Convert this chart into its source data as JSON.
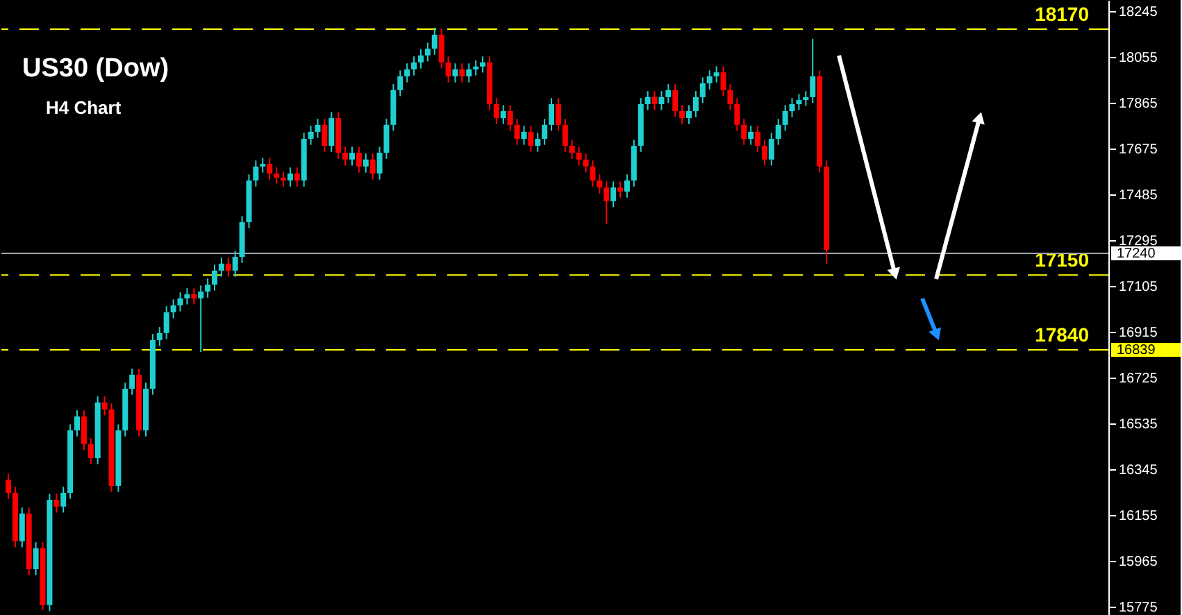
{
  "chart_data": {
    "type": "candlestick",
    "title": "US30 (Dow)",
    "subtitle": "H4 Chart",
    "categories": [
      null,
      null,
      null,
      null,
      null,
      null,
      null,
      null,
      null,
      null,
      null,
      null,
      null,
      null,
      null,
      null,
      null,
      null,
      null,
      null,
      null,
      null,
      null,
      null,
      null,
      null,
      null,
      null,
      null,
      null,
      null,
      null,
      null,
      null,
      null,
      null,
      null,
      null,
      null,
      null,
      null,
      null,
      null,
      null,
      null,
      null,
      null,
      null,
      null,
      null,
      null,
      null,
      null,
      null,
      null,
      null,
      null,
      null,
      null,
      null,
      null,
      null,
      null,
      null,
      null,
      null,
      null,
      null,
      null,
      null,
      null,
      null,
      null,
      null,
      null,
      null,
      null,
      null,
      null,
      null,
      null,
      null,
      null,
      null,
      null,
      null,
      null,
      null,
      null,
      null,
      null,
      null,
      null,
      null,
      null,
      null,
      null,
      null,
      null,
      null,
      null,
      null,
      null,
      null,
      null,
      null,
      null,
      null,
      null,
      null,
      null,
      null,
      null,
      null,
      null,
      null,
      null,
      null,
      null,
      null,
      null,
      null,
      null,
      null,
      null,
      null,
      null,
      null,
      null,
      null,
      null,
      null,
      null,
      null,
      null,
      null,
      null,
      null,
      null,
      null,
      null,
      null,
      null,
      null,
      null,
      null,
      null,
      null,
      null,
      null,
      null,
      null,
      null,
      null,
      null,
      null,
      null,
      null,
      null,
      null
    ],
    "ohlc": [
      [
        16300,
        16325,
        16221,
        16246
      ],
      [
        16246,
        16271,
        16020,
        16045
      ],
      [
        16045,
        16185,
        16020,
        16160
      ],
      [
        16160,
        16185,
        15904,
        15929
      ],
      [
        15929,
        16041,
        15904,
        16016
      ],
      [
        16016,
        16041,
        15760,
        15780
      ],
      [
        15780,
        16242,
        15755,
        16217
      ],
      [
        16217,
        16242,
        16164,
        16189
      ],
      [
        16189,
        16271,
        16164,
        16246
      ],
      [
        16246,
        16530,
        16221,
        16505
      ],
      [
        16505,
        16588,
        16480,
        16563
      ],
      [
        16563,
        16588,
        16423,
        16448
      ],
      [
        16448,
        16473,
        16365,
        16390
      ],
      [
        16390,
        16646,
        16365,
        16621
      ],
      [
        16621,
        16646,
        16567,
        16592
      ],
      [
        16592,
        16617,
        16250,
        16275
      ],
      [
        16275,
        16530,
        16250,
        16505
      ],
      [
        16505,
        16703,
        16480,
        16678
      ],
      [
        16678,
        16761,
        16653,
        16736
      ],
      [
        16736,
        16761,
        16480,
        16505
      ],
      [
        16505,
        16703,
        16480,
        16678
      ],
      [
        16678,
        16905,
        16653,
        16880
      ],
      [
        16880,
        16934,
        16855,
        16909
      ],
      [
        16909,
        17020,
        16884,
        16995
      ],
      [
        16995,
        17049,
        16970,
        17024
      ],
      [
        17024,
        17078,
        16999,
        17053
      ],
      [
        17053,
        17095,
        17028,
        17070
      ],
      [
        17070,
        17095,
        17028,
        17053
      ],
      [
        17053,
        17106,
        16830,
        17081
      ],
      [
        17081,
        17135,
        17056,
        17110
      ],
      [
        17110,
        17193,
        17085,
        17168
      ],
      [
        17168,
        17222,
        17143,
        17197
      ],
      [
        17197,
        17222,
        17143,
        17168
      ],
      [
        17168,
        17250,
        17143,
        17225
      ],
      [
        17225,
        17394,
        17200,
        17369
      ],
      [
        17369,
        17567,
        17344,
        17542
      ],
      [
        17542,
        17625,
        17517,
        17600
      ],
      [
        17600,
        17636,
        17575,
        17611
      ],
      [
        17611,
        17636,
        17546,
        17571
      ],
      [
        17571,
        17596,
        17529,
        17554
      ],
      [
        17554,
        17579,
        17517,
        17542
      ],
      [
        17542,
        17596,
        17517,
        17571
      ],
      [
        17571,
        17596,
        17517,
        17542
      ],
      [
        17542,
        17740,
        17517,
        17715
      ],
      [
        17715,
        17769,
        17690,
        17744
      ],
      [
        17744,
        17798,
        17719,
        17773
      ],
      [
        17773,
        17798,
        17661,
        17686
      ],
      [
        17686,
        17826,
        17661,
        17801
      ],
      [
        17801,
        17826,
        17632,
        17657
      ],
      [
        17657,
        17682,
        17604,
        17629
      ],
      [
        17629,
        17682,
        17604,
        17657
      ],
      [
        17657,
        17682,
        17575,
        17600
      ],
      [
        17600,
        17654,
        17575,
        17629
      ],
      [
        17629,
        17654,
        17546,
        17571
      ],
      [
        17571,
        17682,
        17546,
        17657
      ],
      [
        17657,
        17798,
        17632,
        17773
      ],
      [
        17773,
        17942,
        17748,
        17917
      ],
      [
        17917,
        17999,
        17892,
        17974
      ],
      [
        17974,
        18028,
        17949,
        18003
      ],
      [
        18003,
        18057,
        17978,
        18032
      ],
      [
        18032,
        18086,
        18007,
        18061
      ],
      [
        18061,
        18114,
        18036,
        18089
      ],
      [
        18089,
        18176,
        18064,
        18147
      ],
      [
        18147,
        18172,
        18007,
        18032
      ],
      [
        18032,
        18057,
        17949,
        17974
      ],
      [
        17974,
        18028,
        17949,
        18003
      ],
      [
        18003,
        18028,
        17949,
        17974
      ],
      [
        17974,
        18028,
        17949,
        18003
      ],
      [
        18003,
        18040,
        17978,
        18015
      ],
      [
        18015,
        18057,
        17990,
        18032
      ],
      [
        18032,
        18057,
        17834,
        17859
      ],
      [
        17859,
        17884,
        17776,
        17801
      ],
      [
        17801,
        17855,
        17776,
        17830
      ],
      [
        17830,
        17855,
        17748,
        17773
      ],
      [
        17773,
        17798,
        17690,
        17715
      ],
      [
        17715,
        17769,
        17690,
        17744
      ],
      [
        17744,
        17769,
        17661,
        17686
      ],
      [
        17686,
        17740,
        17661,
        17715
      ],
      [
        17715,
        17798,
        17690,
        17773
      ],
      [
        17773,
        17884,
        17748,
        17859
      ],
      [
        17859,
        17884,
        17748,
        17773
      ],
      [
        17773,
        17798,
        17661,
        17686
      ],
      [
        17686,
        17711,
        17632,
        17657
      ],
      [
        17657,
        17682,
        17604,
        17629
      ],
      [
        17629,
        17654,
        17575,
        17600
      ],
      [
        17600,
        17625,
        17517,
        17542
      ],
      [
        17542,
        17567,
        17488,
        17513
      ],
      [
        17513,
        17538,
        17360,
        17456
      ],
      [
        17456,
        17538,
        17431,
        17513
      ],
      [
        17513,
        17538,
        17471,
        17496
      ],
      [
        17496,
        17567,
        17471,
        17542
      ],
      [
        17542,
        17711,
        17517,
        17686
      ],
      [
        17686,
        17884,
        17661,
        17859
      ],
      [
        17859,
        17913,
        17834,
        17888
      ],
      [
        17888,
        17913,
        17834,
        17859
      ],
      [
        17859,
        17913,
        17834,
        17888
      ],
      [
        17888,
        17942,
        17863,
        17917
      ],
      [
        17917,
        17942,
        17805,
        17830
      ],
      [
        17830,
        17855,
        17776,
        17801
      ],
      [
        17801,
        17855,
        17776,
        17830
      ],
      [
        17830,
        17913,
        17805,
        17888
      ],
      [
        17888,
        17970,
        17863,
        17945
      ],
      [
        17945,
        17999,
        17920,
        17974
      ],
      [
        17974,
        18016,
        17949,
        17991
      ],
      [
        17991,
        18016,
        17892,
        17917
      ],
      [
        17917,
        17942,
        17834,
        17859
      ],
      [
        17859,
        17884,
        17748,
        17773
      ],
      [
        17773,
        17798,
        17690,
        17715
      ],
      [
        17715,
        17769,
        17690,
        17744
      ],
      [
        17744,
        17769,
        17661,
        17686
      ],
      [
        17686,
        17711,
        17604,
        17629
      ],
      [
        17629,
        17740,
        17604,
        17715
      ],
      [
        17715,
        17798,
        17690,
        17773
      ],
      [
        17773,
        17855,
        17748,
        17830
      ],
      [
        17830,
        17884,
        17805,
        17859
      ],
      [
        17859,
        17901,
        17834,
        17876
      ],
      [
        17876,
        17913,
        17851,
        17888
      ],
      [
        17888,
        18130,
        17863,
        17974
      ],
      [
        17974,
        17999,
        17575,
        17600
      ],
      [
        17600,
        17625,
        17197,
        17254
      ],
      null,
      null,
      null,
      null,
      null,
      null,
      null,
      null,
      null,
      null,
      null,
      null,
      null,
      null,
      null,
      null,
      null,
      null,
      null,
      null,
      null,
      null,
      null,
      null,
      null,
      null,
      null,
      null,
      null,
      null,
      null,
      null,
      null,
      null,
      null,
      null,
      null,
      null,
      null,
      null
    ],
    "colors": [
      "#ff0000",
      "#ff0000",
      "#20d0d0",
      "#ff0000",
      "#20d0d0",
      "#ff0000",
      "#20d0d0",
      "#ff0000",
      "#20d0d0",
      "#20d0d0",
      "#20d0d0",
      "#ff0000",
      "#ff0000",
      "#20d0d0",
      "#ff0000",
      "#ff0000",
      "#20d0d0",
      "#20d0d0",
      "#20d0d0",
      "#ff0000",
      "#20d0d0",
      "#20d0d0",
      "#20d0d0",
      "#20d0d0",
      "#20d0d0",
      "#20d0d0",
      "#20d0d0",
      "#ff0000",
      "#20d0d0",
      "#20d0d0",
      "#20d0d0",
      "#20d0d0",
      "#ff0000",
      "#20d0d0",
      "#20d0d0",
      "#20d0d0",
      "#20d0d0",
      "#20d0d0",
      "#ff0000",
      "#ff0000",
      "#ff0000",
      "#20d0d0",
      "#ff0000",
      "#20d0d0",
      "#20d0d0",
      "#20d0d0",
      "#ff0000",
      "#20d0d0",
      "#ff0000",
      "#ff0000",
      "#20d0d0",
      "#ff0000",
      "#20d0d0",
      "#ff0000",
      "#20d0d0",
      "#20d0d0",
      "#20d0d0",
      "#20d0d0",
      "#20d0d0",
      "#20d0d0",
      "#20d0d0",
      "#20d0d0",
      "#20d0d0",
      "#ff0000",
      "#ff0000",
      "#20d0d0",
      "#ff0000",
      "#20d0d0",
      "#20d0d0",
      "#20d0d0",
      "#ff0000",
      "#ff0000",
      "#20d0d0",
      "#ff0000",
      "#ff0000",
      "#20d0d0",
      "#ff0000",
      "#20d0d0",
      "#20d0d0",
      "#20d0d0",
      "#ff0000",
      "#ff0000",
      "#ff0000",
      "#ff0000",
      "#ff0000",
      "#ff0000",
      "#ff0000",
      "#ff0000",
      "#20d0d0",
      "#ff0000",
      "#20d0d0",
      "#20d0d0",
      "#20d0d0",
      "#20d0d0",
      "#ff0000",
      "#20d0d0",
      "#20d0d0",
      "#ff0000",
      "#ff0000",
      "#20d0d0",
      "#20d0d0",
      "#20d0d0",
      "#20d0d0",
      "#20d0d0",
      "#ff0000",
      "#ff0000",
      "#ff0000",
      "#ff0000",
      "#20d0d0",
      "#ff0000",
      "#ff0000",
      "#20d0d0",
      "#20d0d0",
      "#20d0d0",
      "#20d0d0",
      "#20d0d0",
      "#20d0d0",
      "#20d0d0",
      "#ff0000",
      "#ff0000",
      null,
      null,
      null,
      null,
      null,
      null,
      null,
      null,
      null,
      null,
      null,
      null,
      null,
      null,
      null,
      null,
      null,
      null,
      null,
      null,
      null,
      null,
      null,
      null,
      null,
      null,
      null,
      null,
      null,
      null,
      null,
      null,
      null,
      null,
      null,
      null,
      null,
      null,
      null,
      null
    ],
    "ylim": [
      15739,
      18291
    ],
    "yticks": [
      15775,
      15965,
      16155,
      16345,
      16535,
      16725,
      16915,
      17105,
      17295,
      17485,
      17675,
      17865,
      18055,
      18245
    ],
    "tick_labels": "y",
    "grid": false,
    "legend": false,
    "ref_lines": [
      {
        "axis": "y",
        "value": 18170,
        "label": "18170",
        "color": "#ffff00",
        "line_style": "dashed"
      },
      {
        "axis": "y",
        "value": 17150,
        "label": "17150",
        "color": "#ffff00",
        "line_style": "dashed"
      },
      {
        "axis": "y",
        "value": 16839,
        "label": "16839",
        "color": "#ffff00",
        "line_style": "dashed"
      },
      {
        "axis": "y",
        "value": 17240,
        "label": "17240",
        "color": "#a0a4b0",
        "line_style": "solid"
      }
    ],
    "annotations": [
      "17840"
    ]
  }
}
